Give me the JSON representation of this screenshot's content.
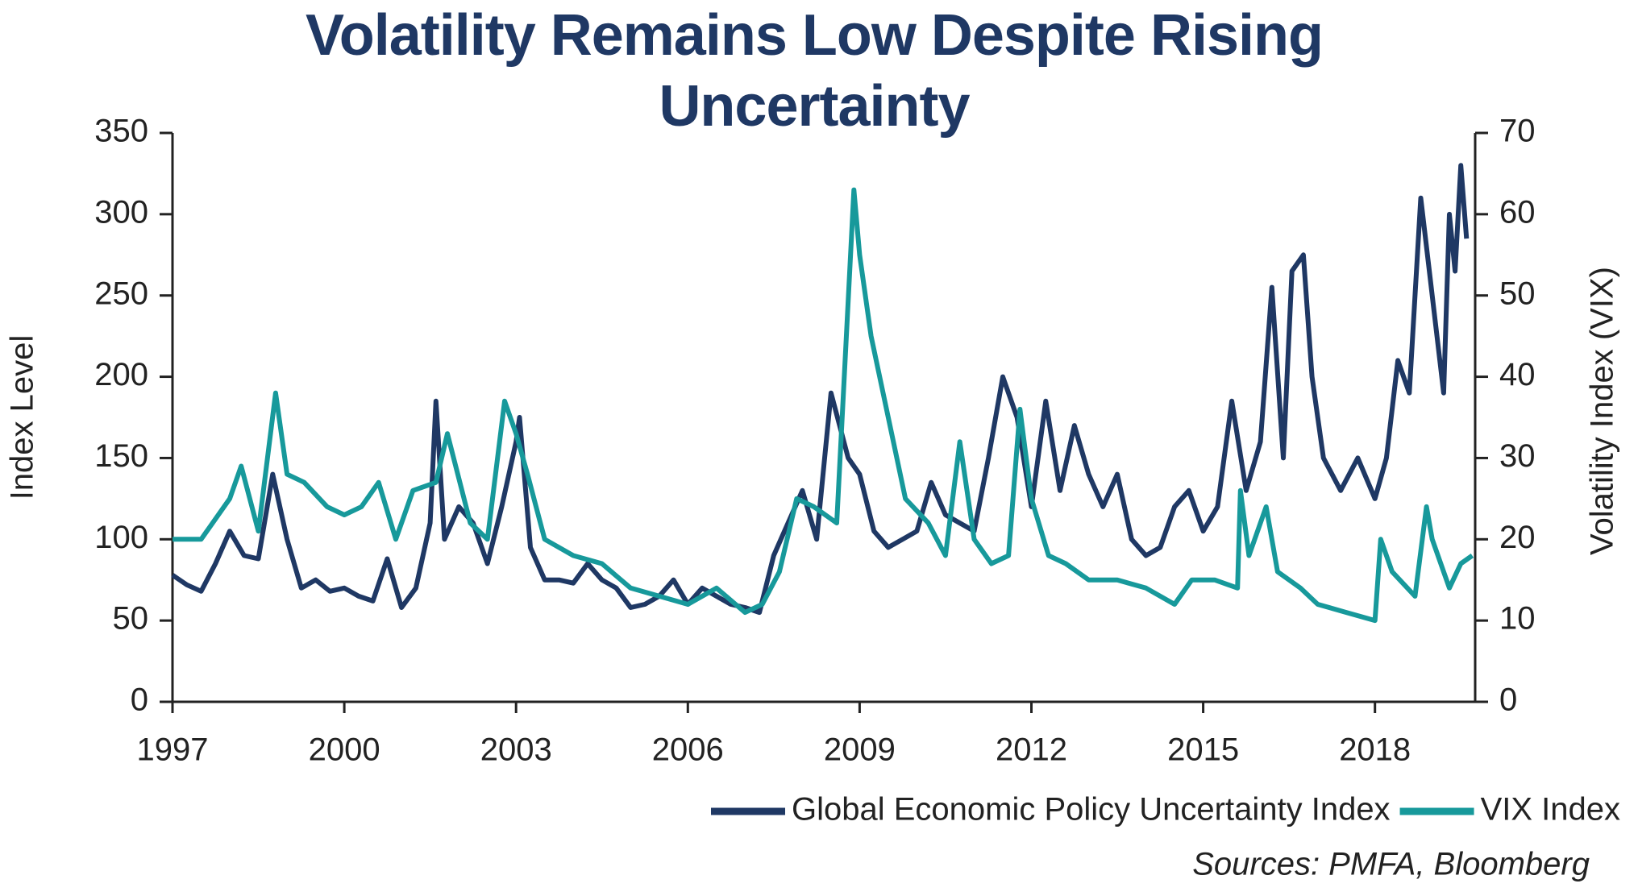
{
  "chart_data": {
    "type": "line",
    "title": "Volatility Remains Low Despite Rising Uncertainty",
    "ylabel": "Index Level",
    "y2label": "Volatility Index (VIX)",
    "source": "Sources: PMFA, Bloomberg",
    "xlim": [
      1997,
      2019.75
    ],
    "xticks": [
      1997,
      2000,
      2003,
      2006,
      2009,
      2012,
      2015,
      2018
    ],
    "ylim": [
      0,
      350
    ],
    "yticks": [
      0,
      50,
      100,
      150,
      200,
      250,
      300,
      350
    ],
    "y2lim": [
      0,
      70
    ],
    "y2ticks": [
      0,
      10,
      20,
      30,
      40,
      50,
      60,
      70
    ],
    "legend": "bottom-right",
    "series": [
      {
        "name": "Global Economic Policy Uncertainty Index",
        "color": "#1f3864",
        "axis": "y",
        "x": [
          1997.0,
          1997.25,
          1997.5,
          1997.75,
          1998.0,
          1998.25,
          1998.5,
          1998.75,
          1999.0,
          1999.25,
          1999.5,
          1999.75,
          2000.0,
          2000.25,
          2000.5,
          2000.75,
          2001.0,
          2001.25,
          2001.5,
          2001.6,
          2001.75,
          2002.0,
          2002.25,
          2002.5,
          2002.75,
          2003.0,
          2003.06,
          2003.25,
          2003.5,
          2003.75,
          2004.0,
          2004.25,
          2004.5,
          2004.75,
          2005.0,
          2005.25,
          2005.5,
          2005.75,
          2006.0,
          2006.25,
          2006.5,
          2006.75,
          2007.0,
          2007.25,
          2007.5,
          2007.75,
          2008.0,
          2008.25,
          2008.5,
          2008.8,
          2009.0,
          2009.25,
          2009.5,
          2009.75,
          2010.0,
          2010.25,
          2010.5,
          2010.75,
          2011.0,
          2011.25,
          2011.5,
          2011.75,
          2012.0,
          2012.25,
          2012.5,
          2012.75,
          2013.0,
          2013.25,
          2013.5,
          2013.75,
          2014.0,
          2014.25,
          2014.5,
          2014.75,
          2015.0,
          2015.25,
          2015.5,
          2015.75,
          2016.0,
          2016.2,
          2016.4,
          2016.55,
          2016.75,
          2016.9,
          2017.1,
          2017.4,
          2017.7,
          2018.0,
          2018.2,
          2018.4,
          2018.6,
          2018.8,
          2019.0,
          2019.2,
          2019.3,
          2019.4,
          2019.5,
          2019.6
        ],
        "values": [
          78,
          72,
          68,
          85,
          105,
          90,
          88,
          140,
          100,
          70,
          75,
          68,
          70,
          65,
          62,
          88,
          58,
          70,
          110,
          185,
          100,
          120,
          110,
          85,
          120,
          160,
          175,
          95,
          75,
          75,
          73,
          85,
          75,
          70,
          58,
          60,
          65,
          75,
          60,
          70,
          65,
          60,
          58,
          55,
          90,
          110,
          130,
          100,
          190,
          150,
          140,
          105,
          95,
          100,
          105,
          135,
          115,
          110,
          105,
          150,
          200,
          175,
          120,
          185,
          130,
          170,
          140,
          120,
          140,
          100,
          90,
          95,
          120,
          130,
          105,
          120,
          185,
          130,
          160,
          255,
          150,
          265,
          275,
          200,
          150,
          130,
          150,
          125,
          150,
          210,
          190,
          310,
          250,
          190,
          300,
          265,
          330,
          285
        ]
      },
      {
        "name": "VIX Index",
        "color": "#17999b",
        "axis": "y2",
        "x": [
          1997.0,
          1997.5,
          1998.0,
          1998.2,
          1998.5,
          1998.8,
          1999.0,
          1999.3,
          1999.7,
          2000.0,
          2000.3,
          2000.6,
          2000.9,
          2001.2,
          2001.6,
          2001.8,
          2002.2,
          2002.5,
          2002.8,
          2003.0,
          2003.2,
          2003.5,
          2004.0,
          2004.5,
          2005.0,
          2005.5,
          2006.0,
          2006.5,
          2007.0,
          2007.3,
          2007.6,
          2007.9,
          2008.2,
          2008.6,
          2008.9,
          2009.0,
          2009.2,
          2009.5,
          2009.8,
          2010.2,
          2010.5,
          2010.75,
          2011.0,
          2011.3,
          2011.6,
          2011.8,
          2012.0,
          2012.3,
          2012.6,
          2013.0,
          2013.5,
          2014.0,
          2014.5,
          2014.8,
          2015.2,
          2015.6,
          2015.65,
          2015.8,
          2016.1,
          2016.3,
          2016.7,
          2017.0,
          2017.5,
          2018.0,
          2018.1,
          2018.3,
          2018.7,
          2018.9,
          2019.0,
          2019.3,
          2019.5,
          2019.7
        ],
        "values": [
          20,
          20,
          25,
          29,
          21,
          38,
          28,
          27,
          24,
          23,
          24,
          27,
          20,
          26,
          27,
          33,
          22,
          20,
          37,
          33,
          28,
          20,
          18,
          17,
          14,
          13,
          12,
          14,
          11,
          12,
          16,
          25,
          24,
          22,
          63,
          55,
          45,
          35,
          25,
          22,
          18,
          32,
          20,
          17,
          18,
          36,
          25,
          18,
          17,
          15,
          15,
          14,
          12,
          15,
          15,
          14,
          26,
          18,
          24,
          16,
          14,
          12,
          11,
          10,
          20,
          16,
          13,
          24,
          20,
          14,
          17,
          18
        ]
      }
    ]
  }
}
